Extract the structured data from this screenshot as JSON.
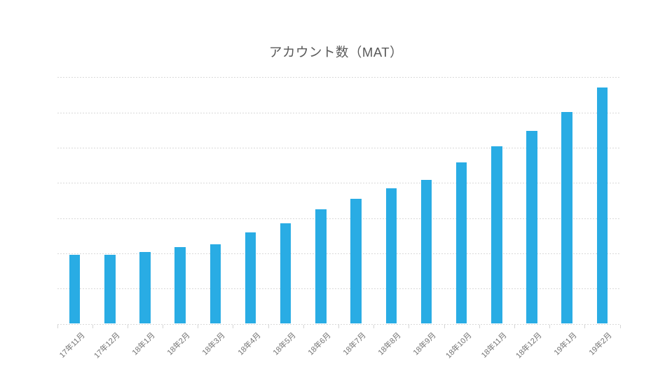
{
  "chart": {
    "background": "#ffffff",
    "bar_color": "#29ace4",
    "gridline_color": "#d9d9d9",
    "title_color": "#595959",
    "axis_label_color": "#737373"
  },
  "chart_data": {
    "type": "bar",
    "title": "アカウント数（MAT）",
    "categories": [
      "17年11月",
      "17年12月",
      "18年1月",
      "18年2月",
      "18年3月",
      "18年4月",
      "18年5月",
      "18年6月",
      "18年7月",
      "18年8月",
      "18年9月",
      "18年10月",
      "18年11月",
      "18年12月",
      "19年1月",
      "19年2月"
    ],
    "values": [
      1.96,
      1.95,
      2.04,
      2.17,
      2.26,
      2.6,
      2.85,
      3.24,
      3.54,
      3.85,
      4.09,
      4.59,
      5.03,
      5.47,
      6.02,
      6.71
    ],
    "xlabel": "",
    "ylabel": "",
    "ylim": [
      0,
      7
    ],
    "grid": true,
    "gridline_style": "dashed",
    "legend": false,
    "y_tick_labels": "none",
    "note": "y-axis has no tick labels; values estimated in gridline units (7 gridline intervals between baseline and top gridline)"
  }
}
